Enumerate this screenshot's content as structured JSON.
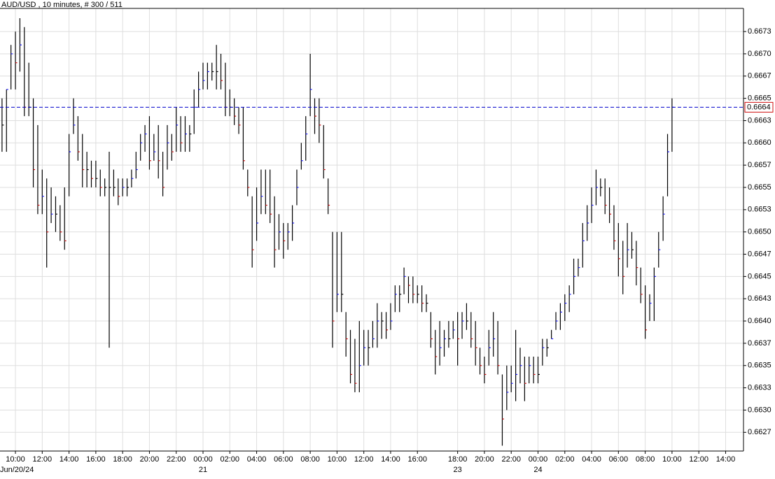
{
  "chart_data": {
    "type": "ohlc",
    "title": "AUD/USD , 10 minutes, # 300 / 511",
    "bar_color": "#000000",
    "up_color": "#1a1aff",
    "down_color": "#d01010",
    "grid": true,
    "ylim": [
      0.66254,
      0.66751
    ],
    "yticks": [
      {
        "value": 0.66275,
        "label": "0.6627"
      },
      {
        "value": 0.663,
        "label": "0.6630"
      },
      {
        "value": 0.66325,
        "label": "0.6633"
      },
      0.6635,
      {
        "value": 0.66375,
        "label": "0.6637"
      },
      {
        "value": 0.664,
        "label": "0.6640"
      },
      {
        "value": 0.66425,
        "label": "0.6643"
      },
      0.6645,
      {
        "value": 0.66475,
        "label": "0.6647"
      },
      {
        "value": 0.665,
        "label": "0.6650"
      },
      {
        "value": 0.66525,
        "label": "0.6653"
      },
      0.6655,
      {
        "value": 0.66575,
        "label": "0.6657"
      },
      {
        "value": 0.666,
        "label": "0.6660"
      },
      {
        "value": 0.66625,
        "label": "0.6663"
      },
      0.6665,
      {
        "value": 0.66675,
        "label": "0.6667"
      },
      {
        "value": 0.667,
        "label": "0.6670"
      },
      {
        "value": 0.66725,
        "label": "0.6673"
      }
    ],
    "last_price": 0.6664,
    "last_price_color": "#0000cc",
    "categories": [
      null,
      null,
      null,
      "10:00",
      null,
      null,
      null,
      null,
      null,
      "12:00",
      null,
      null,
      null,
      null,
      null,
      "14:00",
      null,
      null,
      null,
      null,
      null,
      "16:00",
      null,
      null,
      null,
      null,
      null,
      "18:00",
      null,
      null,
      null,
      null,
      null,
      "20:00",
      null,
      null,
      null,
      null,
      null,
      "22:00",
      null,
      null,
      null,
      null,
      null,
      "00:00",
      null,
      null,
      null,
      null,
      null,
      "02:00",
      null,
      null,
      null,
      null,
      null,
      "04:00",
      null,
      null,
      null,
      null,
      null,
      "06:00",
      null,
      null,
      null,
      null,
      null,
      "08:00",
      null,
      null,
      null,
      null,
      null,
      "10:00",
      null,
      null,
      null,
      null,
      null,
      "12:00",
      null,
      null,
      null,
      null,
      null,
      "14:00",
      null,
      null,
      null,
      null,
      null,
      "16:00",
      null,
      null,
      null,
      null,
      null,
      null,
      null,
      null,
      "18:00",
      null,
      null,
      null,
      null,
      null,
      "20:00",
      null,
      null,
      null,
      null,
      null,
      "22:00",
      null,
      null,
      null,
      null,
      null,
      "00:00",
      null,
      null,
      null,
      null,
      null,
      "02:00",
      null,
      null,
      null,
      null,
      null,
      "04:00",
      null,
      null,
      null,
      null,
      null,
      "06:00",
      null,
      null,
      null,
      null,
      null,
      "08:00",
      null,
      null,
      null,
      null,
      null,
      "10:00",
      null,
      null,
      null,
      null,
      null,
      "12:00",
      null,
      null,
      null,
      null,
      null,
      "14:00"
    ],
    "dates": [
      null,
      null,
      null,
      "Jun/20/24",
      null,
      null,
      null,
      null,
      null,
      null,
      null,
      null,
      null,
      null,
      null,
      null,
      null,
      null,
      null,
      null,
      null,
      null,
      null,
      null,
      null,
      null,
      null,
      null,
      null,
      null,
      null,
      null,
      null,
      null,
      null,
      null,
      null,
      null,
      null,
      null,
      null,
      null,
      null,
      null,
      null,
      "21",
      null,
      null,
      null,
      null,
      null,
      null,
      null,
      null,
      null,
      null,
      null,
      null,
      null,
      null,
      null,
      null,
      null,
      null,
      null,
      null,
      null,
      null,
      null,
      null,
      null,
      null,
      null,
      null,
      null,
      null,
      null,
      null,
      null,
      null,
      null,
      null,
      null,
      null,
      null,
      null,
      null,
      null,
      null,
      null,
      null,
      null,
      null,
      null,
      null,
      null,
      null,
      null,
      null,
      null,
      null,
      null,
      "23",
      null,
      null,
      null,
      null,
      null,
      null,
      null,
      null,
      null,
      null,
      null,
      null,
      null,
      null,
      null,
      null,
      null,
      "24",
      null,
      null,
      null,
      null,
      null,
      null,
      null,
      null,
      null,
      null,
      null,
      null,
      null,
      null,
      null,
      null,
      null,
      null,
      null,
      null,
      null,
      null,
      null,
      null,
      null,
      null,
      null,
      null,
      null,
      null,
      null,
      null,
      null,
      null,
      null,
      null,
      null,
      null,
      null,
      null,
      null,
      null,
      null,
      null,
      null,
      null,
      null
    ],
    "high": [
      0.6665,
      0.6666,
      0.6671,
      0.66725,
      0.6674,
      0.6673,
      0.6669,
      0.6665,
      0.6662,
      0.6657,
      0.6656,
      0.6655,
      0.6654,
      0.6653,
      0.6655,
      0.6661,
      0.6665,
      0.6663,
      0.6661,
      0.6659,
      0.6658,
      0.6658,
      0.6657,
      0.6656,
      0.6659,
      0.6657,
      0.6656,
      0.6656,
      0.6656,
      0.6657,
      0.6659,
      0.6661,
      0.6662,
      0.6663,
      0.6661,
      0.6662,
      0.6659,
      0.6662,
      0.6661,
      0.6664,
      0.6663,
      0.6663,
      0.6662,
      0.6666,
      0.6668,
      0.6669,
      0.6669,
      0.6669,
      0.6671,
      0.667,
      0.6669,
      0.6666,
      0.6665,
      0.6664,
      0.6664,
      0.6657,
      0.6654,
      0.6655,
      0.6657,
      0.6657,
      0.6657,
      0.6654,
      0.6652,
      0.6651,
      0.6651,
      0.6653,
      0.6657,
      0.666,
      0.6663,
      0.667,
      0.6665,
      0.6665,
      0.6662,
      0.6656,
      0.665,
      0.665,
      0.665,
      0.6641,
      0.6639,
      0.6638,
      0.664,
      0.6639,
      0.6639,
      0.664,
      0.6642,
      0.6641,
      0.6641,
      0.6642,
      0.6644,
      0.6644,
      0.6646,
      0.6645,
      0.6645,
      0.6644,
      0.6644,
      0.6643,
      0.6641,
      0.6639,
      0.664,
      0.6639,
      0.664,
      0.664,
      0.6641,
      0.6641,
      0.6642,
      0.6641,
      0.664,
      0.6637,
      0.6636,
      0.6639,
      0.6641,
      0.664,
      0.6634,
      0.6635,
      0.6635,
      0.6639,
      0.6637,
      0.6636,
      0.6636,
      0.6636,
      0.6636,
      0.6638,
      0.6638,
      0.6639,
      0.6641,
      0.6642,
      0.6643,
      0.6644,
      0.6647,
      0.6647,
      0.6651,
      0.6653,
      0.6655,
      0.6657,
      0.6656,
      0.6656,
      0.6655,
      0.6653,
      0.6651,
      0.6649,
      0.6651,
      0.665,
      0.6649,
      0.6646,
      0.6644,
      0.6643,
      0.6646,
      0.665,
      0.6654,
      0.6661,
      0.6665,
      null,
      null,
      null,
      null,
      null,
      null,
      null,
      null,
      null,
      null,
      null,
      null
    ],
    "low": [
      0.6659,
      0.6659,
      0.6666,
      0.6666,
      0.6668,
      0.6663,
      0.6663,
      0.6655,
      0.6652,
      0.6652,
      0.6646,
      0.6651,
      0.665,
      0.6649,
      0.6648,
      0.6654,
      0.6661,
      0.6658,
      0.6655,
      0.6655,
      0.6655,
      0.6655,
      0.6654,
      0.6654,
      0.6637,
      0.6654,
      0.6653,
      0.6654,
      0.6654,
      0.6655,
      0.6656,
      0.6658,
      0.6659,
      0.6657,
      0.6658,
      0.6656,
      0.6654,
      0.6657,
      0.6658,
      0.6659,
      0.6659,
      0.6659,
      0.6659,
      0.6661,
      0.6664,
      0.6666,
      0.6666,
      0.6667,
      0.6666,
      0.6666,
      0.6663,
      0.6663,
      0.6662,
      0.6661,
      0.6657,
      0.6654,
      0.6646,
      0.6649,
      0.6652,
      0.6652,
      0.6651,
      0.6646,
      0.6648,
      0.6647,
      0.6648,
      0.6649,
      0.6653,
      0.6657,
      0.6658,
      0.6663,
      0.6661,
      0.666,
      0.6656,
      0.6652,
      0.6637,
      0.6641,
      0.6641,
      0.6636,
      0.6633,
      0.6632,
      0.6632,
      0.6635,
      0.6635,
      0.6637,
      0.6637,
      0.6638,
      0.6638,
      0.6639,
      0.6641,
      0.6641,
      0.6643,
      0.6642,
      0.6642,
      0.6642,
      0.6641,
      0.6641,
      0.6637,
      0.6634,
      0.6635,
      0.6636,
      0.6637,
      0.6638,
      0.6635,
      0.6638,
      0.6639,
      0.6637,
      0.6635,
      0.6634,
      0.6633,
      0.6635,
      0.6636,
      0.6634,
      0.6626,
      0.663,
      0.6632,
      0.6631,
      0.6633,
      0.6631,
      0.6633,
      0.6633,
      0.6633,
      0.6635,
      0.6636,
      0.6638,
      0.6639,
      0.6639,
      0.664,
      0.6641,
      0.6643,
      0.6645,
      0.6646,
      0.6649,
      0.6651,
      0.6653,
      0.6654,
      0.6652,
      0.6651,
      0.6648,
      0.6645,
      0.6643,
      0.6646,
      0.6647,
      0.6644,
      0.6642,
      0.6638,
      0.664,
      0.664,
      0.6646,
      0.6649,
      0.6654,
      0.6659,
      null,
      null,
      null,
      null,
      null,
      null,
      null,
      null,
      null,
      null,
      null,
      null
    ],
    "close": [
      0.6662,
      0.6666,
      0.667,
      0.6669,
      0.6671,
      0.6664,
      0.6664,
      0.6657,
      0.6653,
      0.6654,
      0.665,
      0.6652,
      0.6652,
      0.665,
      0.6649,
      0.6659,
      0.6662,
      0.6659,
      0.6657,
      0.6657,
      0.6656,
      0.6656,
      0.6655,
      0.6655,
      0.6655,
      0.6655,
      0.6654,
      0.6655,
      0.6655,
      0.6656,
      0.6657,
      0.666,
      0.6661,
      0.6658,
      0.6659,
      0.6658,
      0.6655,
      0.666,
      0.6659,
      0.6662,
      0.666,
      0.6661,
      0.6661,
      0.6664,
      0.6666,
      0.6667,
      0.6668,
      0.6668,
      0.6668,
      0.6667,
      0.6664,
      0.6664,
      0.6663,
      0.6662,
      0.6658,
      0.6655,
      0.6648,
      0.6651,
      0.6654,
      0.6653,
      0.6652,
      0.6648,
      0.665,
      0.6649,
      0.665,
      0.6651,
      0.6655,
      0.6658,
      0.6661,
      0.6666,
      0.6663,
      0.6662,
      0.6657,
      0.6653,
      0.664,
      0.6643,
      0.6643,
      0.6638,
      0.6634,
      0.6633,
      0.6635,
      0.6637,
      0.6637,
      0.6638,
      0.664,
      0.664,
      0.6639,
      0.664,
      0.6643,
      0.6643,
      0.6645,
      0.6644,
      0.6643,
      0.6643,
      0.6642,
      0.6642,
      0.6638,
      0.6636,
      0.6637,
      0.6638,
      0.6638,
      0.6639,
      0.6638,
      0.664,
      0.664,
      0.6638,
      0.6637,
      0.6635,
      0.6634,
      0.6637,
      0.6638,
      0.6635,
      0.6629,
      0.6632,
      0.6633,
      0.6634,
      0.6635,
      0.6633,
      0.6635,
      0.6634,
      0.6634,
      0.6637,
      0.6637,
      0.6638,
      0.664,
      0.6641,
      0.6642,
      0.6643,
      0.6645,
      0.6646,
      0.6649,
      0.6651,
      0.6653,
      0.6655,
      0.6655,
      0.6653,
      0.6652,
      0.6649,
      0.6647,
      0.6645,
      0.6648,
      0.6648,
      0.6646,
      0.6643,
      0.6639,
      0.6642,
      0.6645,
      0.6648,
      0.6652,
      0.6659,
      0.6664,
      null,
      null,
      null,
      null,
      null,
      null,
      null,
      null,
      null,
      null,
      null,
      null
    ]
  }
}
